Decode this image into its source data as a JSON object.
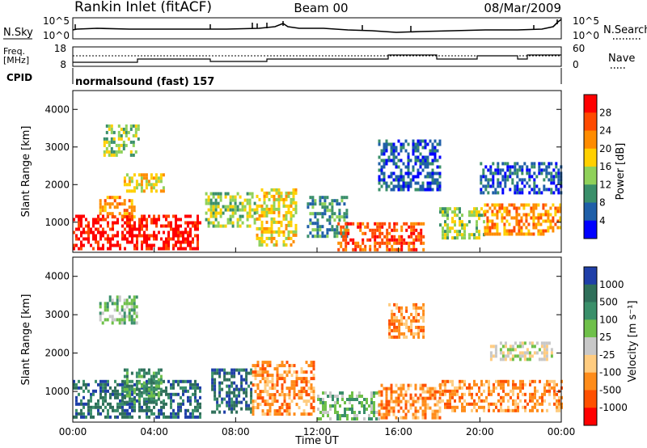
{
  "header": {
    "station": "Rankin Inlet (fitACF)",
    "beam": "Beam 00",
    "date": "08/Mar/2009",
    "program": "normalsound (fast) 157"
  },
  "top_panels": {
    "nsky_label": "N.Sky",
    "nsky_ticks": [
      "10^5",
      "10^0"
    ],
    "nsky_right_ticks": [
      "10^5",
      "10^0"
    ],
    "nsearch_label": "N.Search",
    "freq_label": "Freq.",
    "freq_unit": "[MHz]",
    "freq_ticks": [
      "18",
      "8"
    ],
    "nave_ticks": [
      "60",
      "0"
    ],
    "nave_label": "Nave",
    "cpid_label": "CPID"
  },
  "chart_data": [
    {
      "type": "heatmap",
      "name": "power-panel",
      "ylabel": "Slant Range [km]",
      "xlabel": "Time UT",
      "xlim": [
        0,
        24
      ],
      "ylim": [
        200,
        4500
      ],
      "x_ticks": [
        "00:00",
        "04:00",
        "08:00",
        "12:00",
        "16:00",
        "20:00",
        "00:00"
      ],
      "y_ticks": [
        "1000",
        "2000",
        "3000",
        "4000"
      ],
      "colorbar": {
        "label": "Power [dB]",
        "ticks": [
          "28",
          "24",
          "20",
          "16",
          "12",
          "8",
          "4"
        ],
        "colors": [
          "#ff0000",
          "#ff4a00",
          "#ff8c00",
          "#ffd000",
          "#8fd15a",
          "#3a8f6a",
          "#1f5fa8",
          "#0000ff"
        ]
      },
      "echo_regions": [
        {
          "t0": 0.0,
          "t1": 6.2,
          "r0": 300,
          "r1": 1200,
          "level": 0
        },
        {
          "t0": 1.3,
          "t1": 3.0,
          "r0": 1100,
          "r1": 1700,
          "level": 2
        },
        {
          "t0": 2.5,
          "t1": 4.5,
          "r0": 1800,
          "r1": 2300,
          "level": 3
        },
        {
          "t0": 1.5,
          "t1": 3.2,
          "r0": 2800,
          "r1": 3600,
          "level": 4
        },
        {
          "t0": 6.5,
          "t1": 9.0,
          "r0": 900,
          "r1": 1800,
          "level": 4
        },
        {
          "t0": 9.0,
          "t1": 11.0,
          "r0": 400,
          "r1": 1900,
          "level": 3
        },
        {
          "t0": 11.5,
          "t1": 13.5,
          "r0": 600,
          "r1": 1700,
          "level": 5
        },
        {
          "t0": 13.0,
          "t1": 17.2,
          "r0": 300,
          "r1": 1000,
          "level": 1
        },
        {
          "t0": 15.0,
          "t1": 18.0,
          "r0": 1900,
          "r1": 3200,
          "level": 6
        },
        {
          "t0": 18.0,
          "t1": 20.2,
          "r0": 600,
          "r1": 1400,
          "level": 4
        },
        {
          "t0": 20.2,
          "t1": 24.0,
          "r0": 700,
          "r1": 1500,
          "level": 2
        },
        {
          "t0": 20.0,
          "t1": 24.0,
          "r0": 1800,
          "r1": 2600,
          "level": 6
        }
      ]
    },
    {
      "type": "heatmap",
      "name": "velocity-panel",
      "ylabel": "Slant Range [km]",
      "xlabel": "Time UT",
      "xlim": [
        0,
        24
      ],
      "ylim": [
        200,
        4500
      ],
      "x_ticks": [
        "00:00",
        "04:00",
        "08:00",
        "12:00",
        "16:00",
        "20:00",
        "00:00"
      ],
      "y_ticks": [
        "1000",
        "2000",
        "3000",
        "4000"
      ],
      "colorbar": {
        "label": "Velocity [m s⁻¹]",
        "ticks": [
          "1000",
          "500",
          "100",
          "25",
          "-25",
          "-100",
          "-500",
          "-1000"
        ],
        "colors": [
          "#1f3fa8",
          "#2f6f5a",
          "#3a8f6a",
          "#6fc04a",
          "#c8c8c8",
          "#ffcc80",
          "#ff8c1a",
          "#ff5000",
          "#ff0000"
        ]
      },
      "echo_regions": [
        {
          "t0": 0.0,
          "t1": 6.2,
          "r0": 300,
          "r1": 1300,
          "level": 1
        },
        {
          "t0": 2.5,
          "t1": 4.4,
          "r0": 700,
          "r1": 1600,
          "level": 2
        },
        {
          "t0": 1.3,
          "t1": 3.2,
          "r0": 2800,
          "r1": 3500,
          "level": 3
        },
        {
          "t0": 6.8,
          "t1": 8.8,
          "r0": 500,
          "r1": 1600,
          "level": 1
        },
        {
          "t0": 8.8,
          "t1": 11.8,
          "r0": 400,
          "r1": 1800,
          "level": 6
        },
        {
          "t0": 12.0,
          "t1": 15.0,
          "r0": 300,
          "r1": 1000,
          "level": 3
        },
        {
          "t0": 15.0,
          "t1": 18.0,
          "r0": 300,
          "r1": 1200,
          "level": 6
        },
        {
          "t0": 15.5,
          "t1": 17.2,
          "r0": 2400,
          "r1": 3300,
          "level": 6
        },
        {
          "t0": 18.0,
          "t1": 24.0,
          "r0": 500,
          "r1": 1300,
          "level": 6
        },
        {
          "t0": 20.5,
          "t1": 23.5,
          "r0": 1800,
          "r1": 2300,
          "level": 4
        }
      ]
    }
  ]
}
